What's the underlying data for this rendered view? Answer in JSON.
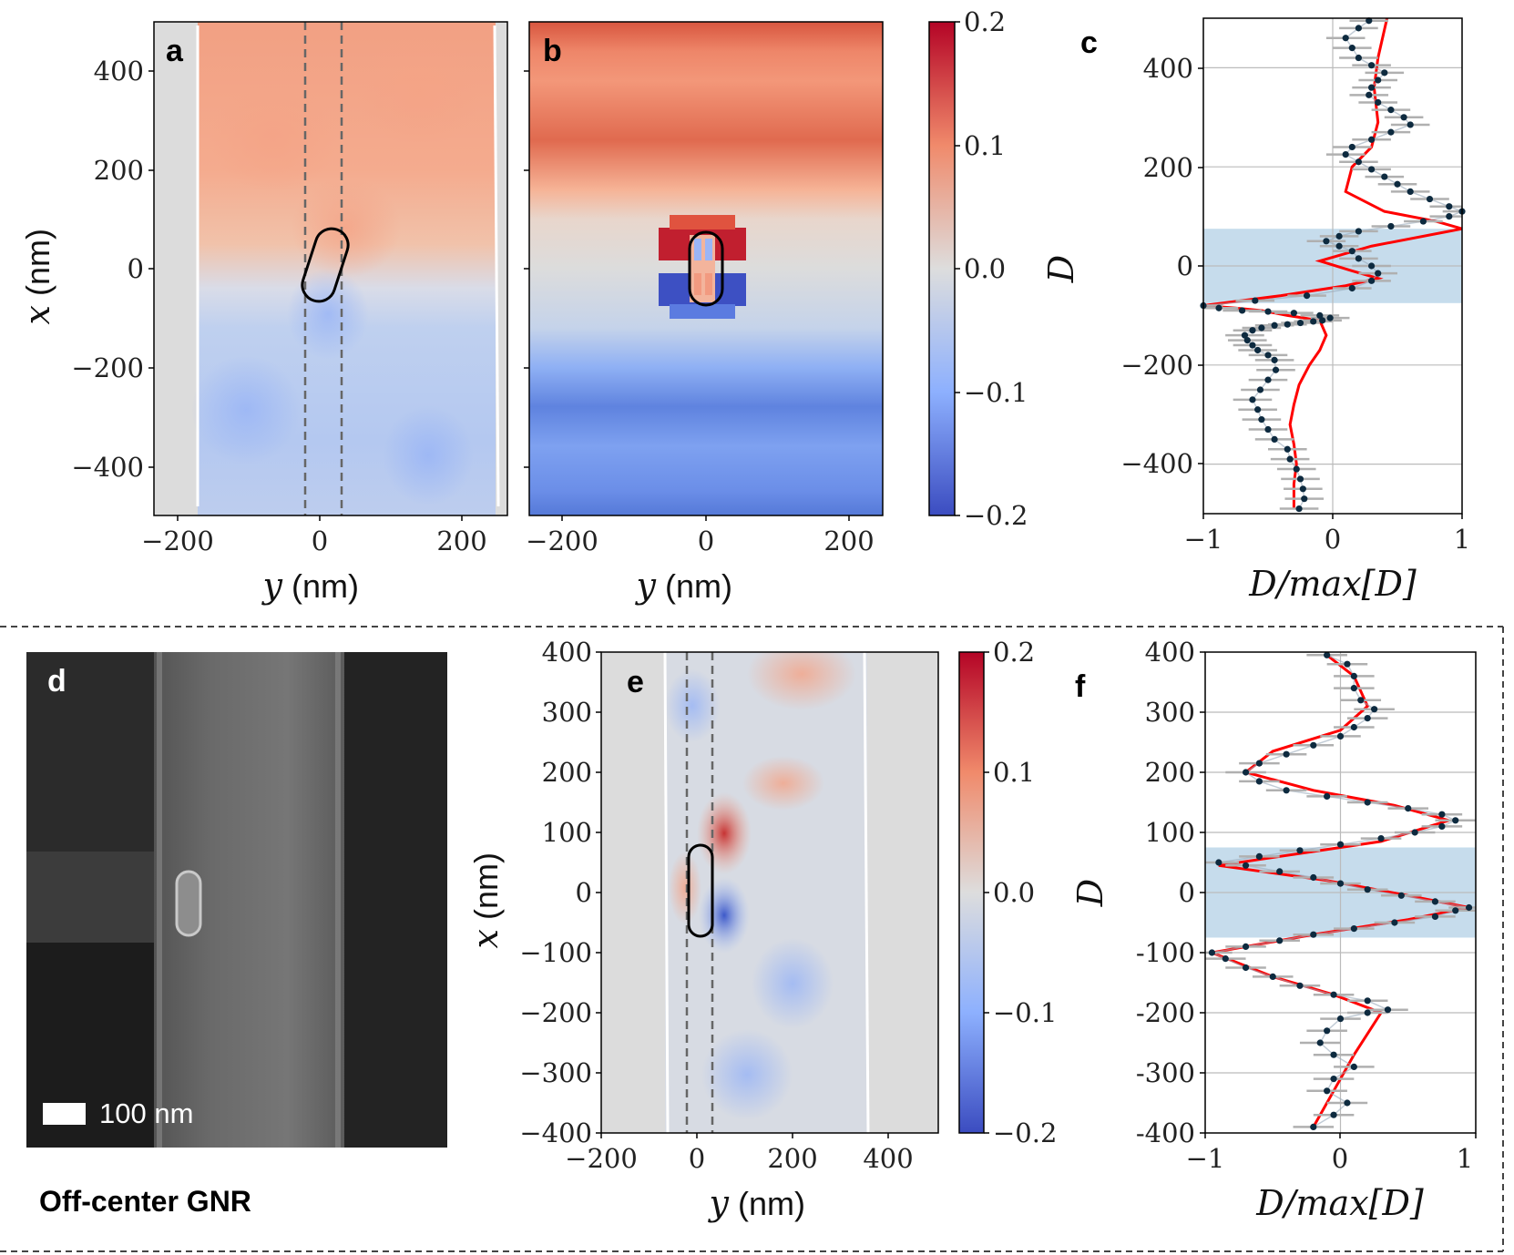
{
  "panels": {
    "a": {
      "letter": "a",
      "xlabel": "y",
      "xunit": "(nm)",
      "ylabel": "x",
      "yunit": "(nm)",
      "xticks": [
        "−200",
        "0",
        "200"
      ],
      "yticks": [
        "400",
        "200",
        "0",
        "−200",
        "−400"
      ]
    },
    "b": {
      "letter": "b",
      "xlabel": "y",
      "xunit": "(nm)",
      "xticks": [
        "−200",
        "0",
        "200"
      ]
    },
    "cb1": {
      "label": "D",
      "ticks": [
        "0.2",
        "0.1",
        "0.0",
        "−0.1",
        "−0.2"
      ]
    },
    "c": {
      "letter": "c",
      "xlabel": "D/max[D]",
      "xticks": [
        "−1",
        "0",
        "1"
      ],
      "yticks": [
        "400",
        "200",
        "0",
        "−200",
        "−400"
      ]
    },
    "d": {
      "letter": "d",
      "scale_label": "100 nm",
      "caption": "Off-center GNR"
    },
    "e": {
      "letter": "e",
      "xlabel": "y",
      "xunit": "(nm)",
      "ylabel": "x",
      "yunit": "(nm)",
      "xticks": [
        "−200",
        "0",
        "200",
        "400"
      ],
      "yticks": [
        "400",
        "300",
        "200",
        "100",
        "0",
        "−100",
        "−200",
        "−300",
        "−400"
      ]
    },
    "cb2": {
      "label": "D",
      "ticks": [
        "0.2",
        "0.1",
        "0.0",
        "−0.1",
        "−0.2"
      ]
    },
    "f": {
      "letter": "f",
      "xlabel": "D/max[D]",
      "xticks": [
        "−1",
        "0",
        "1"
      ],
      "yticks": [
        "400",
        "300",
        "200",
        "100",
        "0",
        "-100",
        "-200",
        "-300",
        "-400"
      ]
    }
  },
  "colors": {
    "red": "#b40426",
    "blue": "#3b4cc0",
    "neutral": "#dddddd",
    "fit": "#ff0000",
    "points": "#0d2a3f",
    "band": "#c6dcec"
  },
  "chart_data": [
    {
      "panel": "c",
      "type": "scatter",
      "xlim": [
        -1,
        1
      ],
      "ylim": [
        -500,
        500
      ],
      "band_y": [
        -75,
        75
      ],
      "series": [
        {
          "kind": "points",
          "x": [
            -0.26,
            -0.22,
            -0.23,
            -0.25,
            -0.28,
            -0.33,
            -0.35,
            -0.45,
            -0.5,
            -0.55,
            -0.58,
            -0.62,
            -0.56,
            -0.5,
            -0.44,
            -0.45,
            -0.5,
            -0.58,
            -0.62,
            -0.66,
            -0.68,
            -0.62,
            -0.55,
            -0.45,
            -0.35,
            -0.25,
            -0.15,
            -0.08,
            -0.02,
            -0.1,
            -0.3,
            -0.5,
            -0.7,
            -0.88,
            -1.0,
            -0.6,
            -0.2,
            0.15,
            0.3,
            0.35,
            0.3,
            0.2,
            0.15,
            0.05,
            -0.05,
            0.05,
            0.2,
            0.45,
            0.7,
            0.9,
            1.0,
            0.9,
            0.75,
            0.6,
            0.5,
            0.4,
            0.3,
            0.2,
            0.1,
            0.15,
            0.3,
            0.45,
            0.6,
            0.55,
            0.45,
            0.35,
            0.28,
            0.3,
            0.35,
            0.4,
            0.3,
            0.2,
            0.15,
            0.1,
            0.2,
            0.28
          ],
          "y": [
            -490,
            -470,
            -450,
            -430,
            -410,
            -390,
            -370,
            -350,
            -330,
            -310,
            -290,
            -270,
            -250,
            -230,
            -210,
            -190,
            -180,
            -170,
            -160,
            -150,
            -140,
            -130,
            -125,
            -120,
            -118,
            -115,
            -112,
            -110,
            -105,
            -100,
            -95,
            -92,
            -90,
            -85,
            -80,
            -70,
            -60,
            -45,
            -30,
            -15,
            0,
            15,
            30,
            40,
            50,
            60,
            70,
            80,
            90,
            100,
            110,
            120,
            135,
            150,
            165,
            180,
            195,
            210,
            225,
            240,
            255,
            270,
            285,
            300,
            315,
            330,
            345,
            360,
            375,
            390,
            405,
            420,
            440,
            460,
            480,
            495
          ]
        },
        {
          "kind": "fit",
          "x": [
            -0.3,
            -0.3,
            -0.28,
            -0.3,
            -0.33,
            -0.3,
            -0.26,
            -0.18,
            -0.1,
            -0.05,
            -0.1,
            -0.35,
            -0.55,
            -0.75,
            -1.0,
            -0.4,
            0.1,
            0.35,
            0.15,
            -0.1,
            0.3,
            1.0,
            0.8,
            0.4,
            0.1,
            0.15,
            0.3,
            0.35,
            0.32,
            0.35,
            0.42
          ],
          "y": [
            -490,
            -440,
            -400,
            -360,
            -320,
            -280,
            -240,
            -200,
            -170,
            -140,
            -110,
            -100,
            -90,
            -85,
            -80,
            -60,
            -40,
            -25,
            -10,
            10,
            40,
            75,
            90,
            110,
            150,
            200,
            240,
            290,
            360,
            420,
            500
          ]
        }
      ]
    },
    {
      "panel": "f",
      "type": "scatter",
      "xlim": [
        -1,
        1
      ],
      "ylim": [
        -400,
        400
      ],
      "band_y": [
        -75,
        75
      ],
      "series": [
        {
          "kind": "points",
          "x": [
            -0.2,
            -0.05,
            0.05,
            -0.1,
            -0.05,
            0.1,
            -0.05,
            -0.15,
            -0.1,
            0.0,
            0.2,
            0.35,
            0.2,
            -0.05,
            -0.3,
            -0.5,
            -0.7,
            -0.85,
            -0.95,
            -0.7,
            -0.45,
            -0.2,
            0.1,
            0.4,
            0.7,
            0.85,
            0.95,
            0.7,
            0.45,
            0.2,
            0.0,
            -0.2,
            -0.45,
            -0.7,
            -0.9,
            -0.6,
            -0.3,
            0.0,
            0.3,
            0.55,
            0.75,
            0.85,
            0.75,
            0.5,
            0.2,
            -0.1,
            -0.4,
            -0.6,
            -0.7,
            -0.6,
            -0.4,
            -0.2,
            0.0,
            0.1,
            0.2,
            0.25,
            0.15,
            0.1,
            0.1,
            0.05,
            -0.1
          ],
          "y": [
            -390,
            -370,
            -350,
            -330,
            -310,
            -290,
            -270,
            -250,
            -230,
            -210,
            -200,
            -195,
            -180,
            -170,
            -155,
            -140,
            -125,
            -110,
            -100,
            -90,
            -80,
            -70,
            -60,
            -50,
            -40,
            -30,
            -25,
            -15,
            -5,
            5,
            15,
            25,
            35,
            45,
            50,
            60,
            70,
            80,
            90,
            100,
            110,
            120,
            130,
            140,
            150,
            160,
            170,
            185,
            200,
            215,
            230,
            245,
            260,
            275,
            290,
            305,
            320,
            340,
            360,
            380,
            395
          ]
        },
        {
          "kind": "fit",
          "x": [
            -0.2,
            -0.05,
            0.1,
            0.3,
            -0.05,
            -0.5,
            -0.95,
            -0.2,
            0.5,
            0.95,
            0.5,
            -0.1,
            -0.9,
            -0.3,
            0.3,
            0.8,
            0.4,
            -0.2,
            -0.7,
            -0.5,
            0.0,
            0.2,
            0.1,
            -0.1
          ],
          "y": [
            -390,
            -330,
            -270,
            -200,
            -170,
            -140,
            -100,
            -70,
            -45,
            -25,
            -5,
            20,
            45,
            65,
            85,
            120,
            145,
            170,
            200,
            235,
            270,
            310,
            360,
            395
          ]
        }
      ]
    }
  ]
}
